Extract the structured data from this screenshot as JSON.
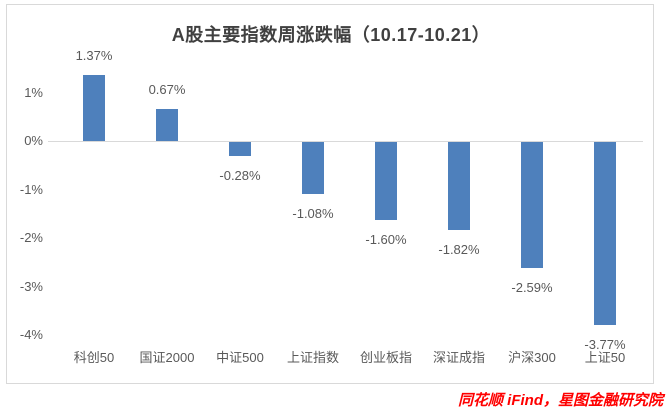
{
  "chart_data": {
    "type": "bar",
    "title": "A股主要指数周涨跌幅（10.17-10.21）",
    "categories": [
      "科创50",
      "国证2000",
      "中证500",
      "上证指数",
      "创业板指",
      "深证成指",
      "沪深300",
      "上证50"
    ],
    "values": [
      1.37,
      0.67,
      -0.28,
      -1.08,
      -1.6,
      -1.82,
      -2.59,
      -3.77
    ],
    "value_labels": [
      "1.37%",
      "0.67%",
      "-0.28%",
      "-1.08%",
      "-1.60%",
      "-1.82%",
      "-2.59%",
      "-3.77%"
    ],
    "xlabel": "",
    "ylabel": "",
    "ylim": [
      -4,
      1.5
    ],
    "y_ticks": [
      {
        "value": 1,
        "label": "1%"
      },
      {
        "value": 0,
        "label": "0%"
      },
      {
        "value": -1,
        "label": "-1%"
      },
      {
        "value": -2,
        "label": "-2%"
      },
      {
        "value": -3,
        "label": "-3%"
      },
      {
        "value": -4,
        "label": "-4%"
      }
    ],
    "grid": false,
    "legend": false,
    "bar_color": "#4E80BC",
    "label_color": "#595959",
    "title_color": "#404040",
    "axis_line_color": "#D9D9D9",
    "border_color": "#D9D9D9",
    "source_text": "同花顺 iFind，星图金融研究院",
    "source_color": "#FF0000"
  }
}
